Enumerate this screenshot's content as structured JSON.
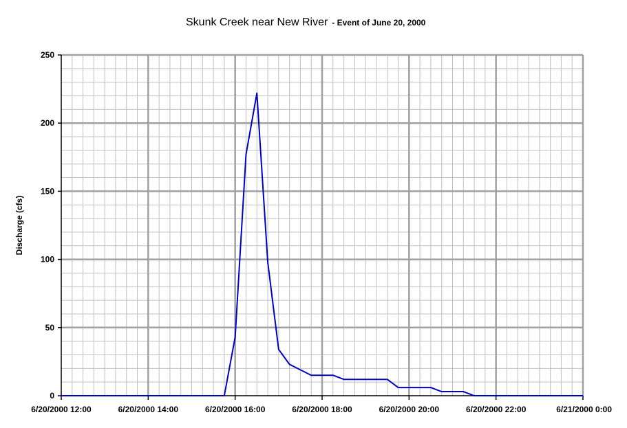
{
  "chart_data": {
    "type": "line",
    "title": "Skunk Creek near New River",
    "subtitle": "- Event of June 20, 2000",
    "xlabel": "",
    "ylabel": "Discharge (cfs)",
    "xlim": [
      "2000-06-20 12:00",
      "2000-06-21 00:00"
    ],
    "ylim": [
      0,
      250
    ],
    "x_ticks": [
      "6/20/2000 12:00",
      "6/20/2000 14:00",
      "6/20/2000 16:00",
      "6/20/2000 18:00",
      "6/20/2000 20:00",
      "6/20/2000 22:00",
      "6/21/2000 0:00"
    ],
    "y_ticks": [
      0,
      50,
      100,
      150,
      200,
      250
    ],
    "grid": true,
    "legend": "none",
    "series": [
      {
        "color": "#0000cc",
        "points": [
          [
            "2000-06-20 12:00",
            0
          ],
          [
            "2000-06-20 15:45",
            0
          ],
          [
            "2000-06-20 16:00",
            43
          ],
          [
            "2000-06-20 16:15",
            177
          ],
          [
            "2000-06-20 16:30",
            222
          ],
          [
            "2000-06-20 16:45",
            98
          ],
          [
            "2000-06-20 17:00",
            34
          ],
          [
            "2000-06-20 17:15",
            23
          ],
          [
            "2000-06-20 17:45",
            15
          ],
          [
            "2000-06-20 18:15",
            15
          ],
          [
            "2000-06-20 18:30",
            12
          ],
          [
            "2000-06-20 19:30",
            12
          ],
          [
            "2000-06-20 19:45",
            6
          ],
          [
            "2000-06-20 20:30",
            6
          ],
          [
            "2000-06-20 20:45",
            3
          ],
          [
            "2000-06-20 21:15",
            3
          ],
          [
            "2000-06-20 21:30",
            0
          ],
          [
            "2000-06-21 00:00",
            0
          ]
        ]
      }
    ]
  }
}
